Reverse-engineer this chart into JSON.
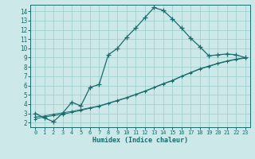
{
  "xlabel": "Humidex (Indice chaleur)",
  "bg_color": "#cce8e8",
  "grid_color": "#99cccc",
  "line_color": "#1a6b6b",
  "xlim": [
    -0.5,
    23.5
  ],
  "ylim": [
    1.5,
    14.7
  ],
  "xticks": [
    0,
    1,
    2,
    3,
    4,
    5,
    6,
    7,
    8,
    9,
    10,
    11,
    12,
    13,
    14,
    15,
    16,
    17,
    18,
    19,
    20,
    21,
    22,
    23
  ],
  "yticks": [
    2,
    3,
    4,
    5,
    6,
    7,
    8,
    9,
    10,
    11,
    12,
    13,
    14
  ],
  "curve1_x": [
    0,
    1,
    2,
    3,
    4,
    5,
    6,
    7,
    8,
    9,
    10,
    11,
    12,
    13,
    14,
    15,
    16,
    17,
    18,
    19,
    20,
    21,
    22,
    23
  ],
  "curve1_y": [
    3.0,
    2.5,
    2.1,
    3.0,
    4.2,
    3.8,
    5.8,
    6.1,
    9.3,
    10.0,
    11.2,
    12.2,
    13.3,
    14.4,
    14.1,
    13.2,
    12.2,
    11.1,
    10.2,
    9.2,
    9.3,
    9.4,
    9.3,
    9.0
  ],
  "curve2_x": [
    0,
    1,
    2,
    3,
    4,
    5,
    6,
    7,
    8,
    9,
    10,
    11,
    12,
    13,
    14,
    15,
    16,
    17,
    18,
    19,
    20,
    21,
    22,
    23
  ],
  "curve2_y": [
    2.6,
    2.7,
    2.9,
    3.05,
    3.2,
    3.4,
    3.6,
    3.8,
    4.1,
    4.4,
    4.7,
    5.05,
    5.4,
    5.8,
    6.2,
    6.55,
    7.0,
    7.4,
    7.8,
    8.1,
    8.4,
    8.65,
    8.85,
    9.0
  ],
  "curve3_x": [
    0,
    1,
    2,
    3,
    4,
    5,
    6,
    7,
    8,
    9,
    10,
    11,
    12,
    13,
    14,
    15,
    16,
    17,
    18,
    19,
    20,
    21,
    22,
    23
  ],
  "curve3_y": [
    2.4,
    2.6,
    2.75,
    2.9,
    3.1,
    3.3,
    3.55,
    3.75,
    4.05,
    4.35,
    4.65,
    5.0,
    5.35,
    5.75,
    6.15,
    6.5,
    6.95,
    7.35,
    7.75,
    8.05,
    8.35,
    8.6,
    8.8,
    8.95
  ]
}
